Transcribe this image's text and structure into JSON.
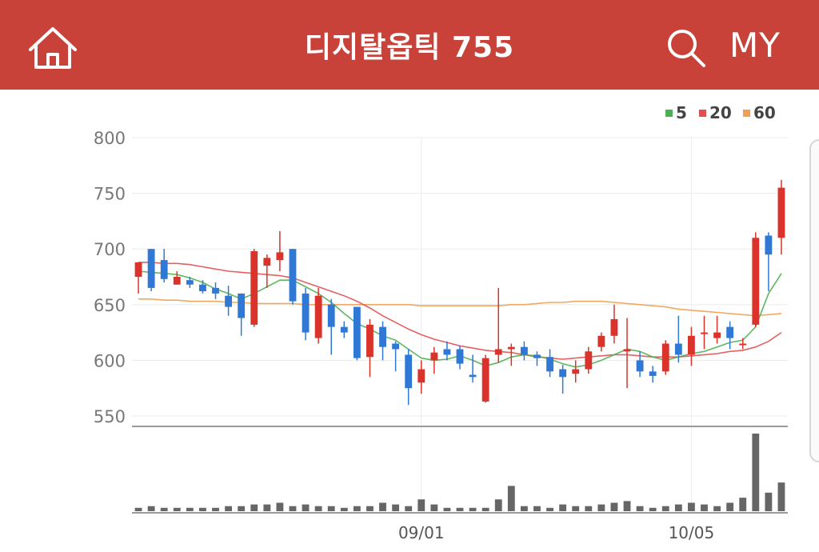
{
  "header": {
    "title": "디지탈옵틱 755",
    "my_label": "MY",
    "icons": {
      "home": "home-icon",
      "search": "search-icon"
    },
    "bg_color": "#c8423a"
  },
  "chart_data": {
    "type": "candlestick",
    "y_ticks": [
      "800",
      "750",
      "700",
      "650",
      "600",
      "550"
    ],
    "ylim": [
      545,
      805
    ],
    "x_labels": [
      "09/01",
      "10/05"
    ],
    "legend": [
      {
        "name": "5",
        "color": "#4caf50"
      },
      {
        "name": "20",
        "color": "#e05050"
      },
      {
        "name": "60",
        "color": "#f0a050"
      }
    ],
    "colors": {
      "up": "#d9332b",
      "down": "#2f78d6",
      "volume": "#666666"
    },
    "candles": [
      [
        675,
        688,
        660,
        688
      ],
      [
        700,
        700,
        662,
        665
      ],
      [
        690,
        700,
        670,
        673
      ],
      [
        668,
        680,
        668,
        675
      ],
      [
        672,
        675,
        665,
        668
      ],
      [
        668,
        672,
        660,
        662
      ],
      [
        665,
        670,
        655,
        660
      ],
      [
        658,
        667,
        640,
        648
      ],
      [
        660,
        660,
        622,
        638
      ],
      [
        632,
        700,
        630,
        698
      ],
      [
        685,
        695,
        665,
        692
      ],
      [
        690,
        716,
        680,
        697
      ],
      [
        700,
        700,
        650,
        653
      ],
      [
        660,
        665,
        618,
        625
      ],
      [
        620,
        665,
        615,
        658
      ],
      [
        650,
        655,
        605,
        630
      ],
      [
        630,
        635,
        620,
        625
      ],
      [
        648,
        648,
        600,
        602
      ],
      [
        603,
        637,
        585,
        632
      ],
      [
        630,
        635,
        600,
        612
      ],
      [
        615,
        617,
        590,
        610
      ],
      [
        605,
        610,
        560,
        575
      ],
      [
        580,
        600,
        570,
        592
      ],
      [
        600,
        612,
        588,
        607
      ],
      [
        610,
        617,
        600,
        605
      ],
      [
        610,
        613,
        592,
        597
      ],
      [
        587,
        605,
        580,
        585
      ],
      [
        563,
        605,
        562,
        602
      ],
      [
        605,
        665,
        598,
        610
      ],
      [
        610,
        615,
        595,
        612
      ],
      [
        612,
        617,
        600,
        605
      ],
      [
        605,
        608,
        595,
        602
      ],
      [
        603,
        610,
        585,
        590
      ],
      [
        592,
        596,
        570,
        585
      ],
      [
        588,
        600,
        580,
        592
      ],
      [
        592,
        612,
        588,
        608
      ],
      [
        612,
        625,
        608,
        622
      ],
      [
        622,
        650,
        615,
        637
      ],
      [
        608,
        638,
        575,
        610
      ],
      [
        600,
        608,
        585,
        590
      ],
      [
        590,
        595,
        580,
        586
      ],
      [
        590,
        618,
        587,
        615
      ],
      [
        615,
        640,
        598,
        605
      ],
      [
        605,
        630,
        595,
        622
      ],
      [
        625,
        640,
        610,
        625
      ],
      [
        620,
        640,
        615,
        625
      ],
      [
        630,
        635,
        610,
        620
      ],
      [
        615,
        620,
        610,
        615
      ],
      [
        632,
        715,
        630,
        710
      ],
      [
        712,
        715,
        662,
        695
      ],
      [
        710,
        762,
        695,
        755
      ]
    ],
    "ma5": [
      680,
      679,
      678,
      677,
      674,
      670,
      664,
      660,
      655,
      660,
      666,
      672,
      672,
      666,
      660,
      652,
      642,
      633,
      628,
      622,
      618,
      610,
      602,
      600,
      601,
      604,
      600,
      595,
      598,
      603,
      605,
      604,
      601,
      597,
      594,
      596,
      600,
      605,
      610,
      608,
      603,
      600,
      603,
      606,
      608,
      612,
      616,
      618,
      630,
      660,
      678
    ],
    "ma20": [
      688,
      688,
      687,
      687,
      686,
      684,
      682,
      680,
      679,
      678,
      677,
      676,
      674,
      670,
      666,
      662,
      658,
      653,
      647,
      640,
      634,
      628,
      623,
      619,
      616,
      613,
      611,
      609,
      608,
      607,
      605,
      603,
      602,
      601,
      602,
      603,
      604,
      605,
      605,
      604,
      603,
      603,
      603,
      604,
      605,
      606,
      608,
      609,
      612,
      617,
      625
    ],
    "ma60": [
      655,
      655,
      654,
      654,
      653,
      653,
      653,
      652,
      652,
      651,
      651,
      651,
      651,
      650,
      650,
      650,
      650,
      650,
      650,
      650,
      650,
      650,
      649,
      649,
      649,
      649,
      649,
      649,
      649,
      650,
      650,
      651,
      652,
      652,
      653,
      653,
      653,
      652,
      651,
      650,
      649,
      648,
      646,
      645,
      644,
      643,
      642,
      641,
      640,
      641,
      642
    ],
    "volume": [
      2,
      3,
      2,
      2,
      2,
      2,
      2,
      3,
      3,
      4,
      4,
      5,
      3,
      4,
      3,
      3,
      2,
      3,
      3,
      5,
      4,
      3,
      7,
      4,
      2,
      2,
      2,
      2,
      7,
      15,
      3,
      3,
      2,
      4,
      3,
      3,
      4,
      5,
      6,
      3,
      2,
      3,
      4,
      5,
      4,
      3,
      5,
      8,
      46,
      11,
      17
    ]
  }
}
